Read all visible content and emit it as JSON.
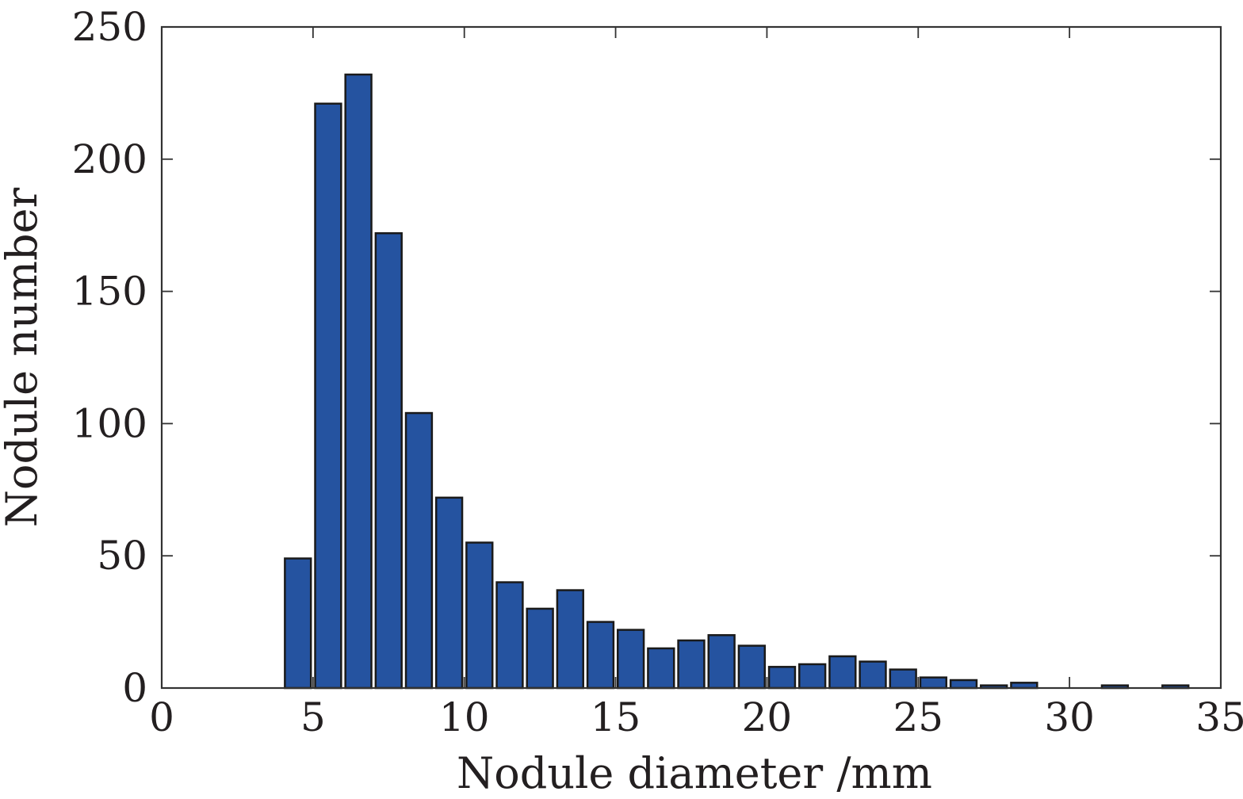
{
  "chart_data": {
    "type": "bar",
    "title": "",
    "xlabel": "Nodule diameter /mm",
    "ylabel": "Nodule number",
    "xlim": [
      0,
      35
    ],
    "ylim": [
      0,
      250
    ],
    "xticks": [
      0,
      5,
      10,
      15,
      20,
      25,
      30,
      35
    ],
    "yticks": [
      0,
      50,
      100,
      150,
      200,
      250
    ],
    "grid": false,
    "bar_color": "#2553a0",
    "bin_width_mm": 1,
    "x": [
      4.5,
      5.5,
      6.5,
      7.5,
      8.5,
      9.5,
      10.5,
      11.5,
      12.5,
      13.5,
      14.5,
      15.5,
      16.5,
      17.5,
      18.5,
      19.5,
      20.5,
      21.5,
      22.5,
      23.5,
      24.5,
      25.5,
      26.5,
      27.5,
      28.5,
      29.5,
      30.5,
      31.5,
      32.5,
      33.5
    ],
    "values": [
      49,
      221,
      232,
      172,
      104,
      72,
      55,
      40,
      30,
      37,
      25,
      22,
      15,
      18,
      20,
      16,
      8,
      9,
      12,
      10,
      7,
      4,
      3,
      1,
      2,
      0,
      0,
      1,
      0,
      1
    ]
  }
}
